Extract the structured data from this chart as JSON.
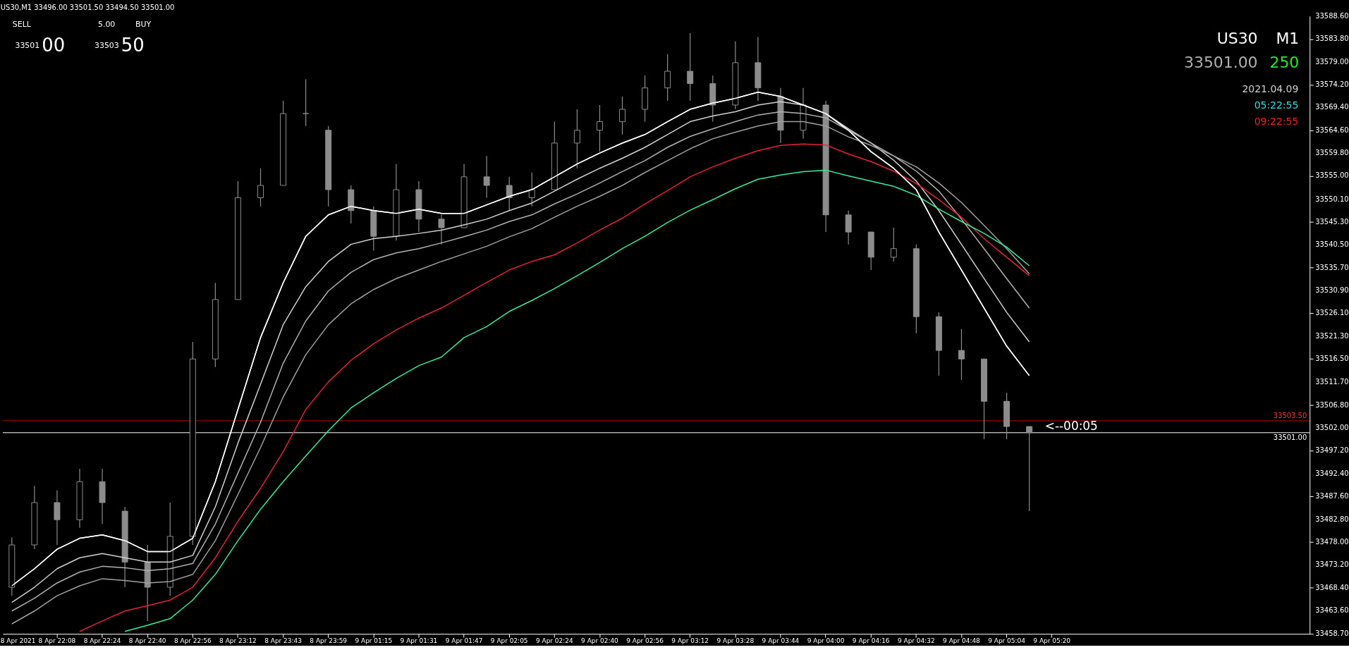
{
  "chart_data": {
    "type": "candlestick",
    "title": "US30,M1 33496.00 33501.50 33494.50 33501.00",
    "categories": [
      "8 Apr 2021",
      null,
      "8 Apr 22:08",
      null,
      "8 Apr 22:24",
      null,
      "8 Apr 22:40",
      null,
      "8 Apr 22:56",
      null,
      "8 Apr 23:12",
      null,
      "8 Apr 23:43",
      null,
      "8 Apr 23:59",
      null,
      "9 Apr 01:15",
      null,
      "9 Apr 01:31",
      null,
      "9 Apr 01:47",
      null,
      "9 Apr 02:05",
      null,
      "9 Apr 02:24",
      null,
      "9 Apr 02:40",
      null,
      "9 Apr 02:56",
      null,
      "9 Apr 03:12",
      null,
      "9 Apr 03:28",
      null,
      "9 Apr 03:44",
      null,
      "9 Apr 04:00",
      null,
      "9 Apr 04:16",
      null,
      "9 Apr 04:32",
      null,
      "9 Apr 04:48",
      null,
      "9 Apr 05:04",
      null,
      "9 Apr 05:20",
      null,
      null,
      null,
      null,
      null,
      null,
      null,
      null,
      null,
      null,
      null
    ],
    "color": "#8c8c8c",
    "ohlc": [
      [
        33468.5,
        33479.0,
        33466.7,
        33477.4
      ],
      [
        33477.4,
        33489.8,
        33476.5,
        33486.3
      ],
      [
        33486.3,
        33488.9,
        33477.4,
        33482.7
      ],
      [
        33482.7,
        33493.4,
        33481.0,
        33490.7
      ],
      [
        33490.7,
        33493.4,
        33481.8,
        33486.3
      ],
      [
        33484.5,
        33485.4,
        33468.5,
        33473.8
      ],
      [
        33473.8,
        33477.4,
        33461.4,
        33468.5
      ],
      [
        33468.5,
        33486.3,
        33466.7,
        33479.2
      ],
      [
        33479.2,
        33520.1,
        33477.4,
        33516.5
      ],
      [
        33516.5,
        33532.5,
        33514.8,
        33529.0
      ],
      [
        33529.0,
        33553.9,
        33529.0,
        33550.4
      ],
      [
        33550.4,
        33556.6,
        33548.6,
        33553.0
      ],
      [
        33553.0,
        33570.8,
        33553.0,
        33568.1
      ],
      [
        33568.1,
        33575.3,
        33565.5,
        33568.1
      ],
      [
        33564.6,
        33565.5,
        33548.6,
        33552.1
      ],
      [
        33552.1,
        33553.0,
        33545.0,
        33547.7
      ],
      [
        33547.7,
        33548.6,
        33539.3,
        33542.3
      ],
      [
        33542.3,
        33557.5,
        33541.4,
        33552.1
      ],
      [
        33552.1,
        33553.9,
        33543.2,
        33545.9
      ],
      [
        33545.9,
        33546.8,
        33540.6,
        33544.1
      ],
      [
        33544.1,
        33557.5,
        33544.1,
        33554.8
      ],
      [
        33554.8,
        33559.2,
        33550.4,
        33553.0
      ],
      [
        33553.0,
        33554.8,
        33547.7,
        33550.4
      ],
      [
        33550.4,
        33555.7,
        33548.6,
        33552.1
      ],
      [
        33552.1,
        33566.4,
        33552.1,
        33561.9
      ],
      [
        33561.9,
        33569.0,
        33556.6,
        33564.6
      ],
      [
        33564.6,
        33569.9,
        33560.1,
        33566.4
      ],
      [
        33566.4,
        33571.7,
        33563.7,
        33569.0
      ],
      [
        33569.0,
        33576.1,
        33566.4,
        33573.5
      ],
      [
        33573.5,
        33580.6,
        33570.8,
        33577.0
      ],
      [
        33577.0,
        33585.0,
        33570.8,
        33574.4
      ],
      [
        33574.4,
        33576.1,
        33566.4,
        33569.9
      ],
      [
        33569.9,
        33583.3,
        33569.0,
        33578.8
      ],
      [
        33578.8,
        33584.2,
        33570.8,
        33573.5
      ],
      [
        33571.7,
        33573.5,
        33561.9,
        33564.6
      ],
      [
        33564.6,
        33573.5,
        33562.8,
        33569.9
      ],
      [
        33569.9,
        33570.8,
        33543.2,
        33546.8
      ],
      [
        33546.8,
        33547.7,
        33540.6,
        33543.2
      ],
      [
        33543.2,
        33543.2,
        33535.2,
        33537.9
      ],
      [
        33537.9,
        33544.1,
        33537.0,
        33539.7
      ],
      [
        33539.7,
        33540.6,
        33521.9,
        33525.4
      ],
      [
        33525.4,
        33526.3,
        33513.0,
        33518.3
      ],
      [
        33518.3,
        33522.8,
        33512.1,
        33516.5
      ],
      [
        33516.5,
        33516.5,
        33499.6,
        33507.6
      ],
      [
        33507.6,
        33509.4,
        33499.6,
        33502.3
      ],
      [
        33502.3,
        33502.3,
        33484.5,
        33501.0
      ],
      null,
      null,
      null,
      null,
      null,
      null,
      null,
      null,
      null,
      null,
      null,
      null
    ],
    "series": [
      {
        "type": "line",
        "color": "#ffffff",
        "values": [
          33468.8,
          33472.4,
          33476.5,
          33478.8,
          33479.5,
          33478.3,
          33476.0,
          33476.0,
          33478.8,
          33490.7,
          33505.9,
          33521.0,
          33532.5,
          33542.3,
          33546.8,
          33548.6,
          33547.7,
          33547.1,
          33548.0,
          33547.1,
          33547.1,
          33548.9,
          33550.7,
          33552.1,
          33554.8,
          33557.5,
          33559.8,
          33561.9,
          33563.7,
          33566.4,
          33569.0,
          33570.3,
          33571.3,
          33572.6,
          33571.7,
          33569.9,
          33568.1,
          33564.6,
          33560.1,
          33556.6,
          33552.1,
          33543.2,
          33535.2,
          33527.2,
          33519.2,
          33513.0,
          null,
          null,
          null,
          null,
          null,
          null,
          null,
          null,
          null,
          null,
          null,
          null
        ]
      },
      {
        "type": "line",
        "color": "#d0d0d0",
        "values": [
          33465.3,
          33468.5,
          33472.4,
          33474.7,
          33475.6,
          33474.7,
          33473.8,
          33473.8,
          33475.2,
          33485.4,
          33498.8,
          33511.2,
          33523.7,
          33531.7,
          33537.0,
          33540.6,
          33541.8,
          33542.3,
          33542.9,
          33543.6,
          33544.7,
          33545.9,
          33547.7,
          33549.3,
          33551.8,
          33554.3,
          33556.6,
          33558.7,
          33561.0,
          33563.7,
          33566.4,
          33567.6,
          33568.5,
          33569.9,
          33570.6,
          33569.9,
          33568.1,
          33564.9,
          33561.9,
          33558.3,
          33553.9,
          33547.7,
          33540.6,
          33533.4,
          33526.3,
          33520.1,
          null,
          null,
          null,
          null,
          null,
          null,
          null,
          null,
          null,
          null,
          null,
          null
        ]
      },
      {
        "type": "line",
        "color": "#b0b0b0",
        "values": [
          33463.5,
          33466.2,
          33469.4,
          33471.7,
          33472.9,
          33472.6,
          33472.0,
          33472.4,
          33473.5,
          33481.8,
          33492.5,
          33503.2,
          33515.6,
          33524.5,
          33530.8,
          33534.7,
          33537.4,
          33538.8,
          33539.7,
          33540.9,
          33542.2,
          33543.6,
          33545.4,
          33546.8,
          33549.1,
          33551.2,
          33553.5,
          33555.9,
          33558.2,
          33561.0,
          33563.3,
          33564.9,
          33566.4,
          33567.8,
          33568.5,
          33568.1,
          33567.2,
          33564.6,
          33561.9,
          33559.2,
          33556.0,
          33551.8,
          33545.9,
          33539.7,
          33533.4,
          33527.2,
          null,
          null,
          null,
          null,
          null,
          null,
          null,
          null,
          null,
          null,
          null,
          null
        ]
      },
      {
        "type": "line",
        "color": "#a0a0a0",
        "values": [
          33460.8,
          33463.5,
          33466.7,
          33468.8,
          33470.3,
          33469.9,
          33469.4,
          33469.7,
          33471.2,
          33478.3,
          33488.0,
          33497.9,
          33508.5,
          33517.4,
          33523.7,
          33528.1,
          33531.1,
          33533.4,
          33535.2,
          33537.0,
          33538.6,
          33540.2,
          33542.2,
          33543.9,
          33546.3,
          33548.6,
          33550.7,
          33553.0,
          33555.7,
          33558.2,
          33560.7,
          33562.8,
          33564.2,
          33565.5,
          33566.4,
          33566.4,
          33565.5,
          33563.2,
          33561.4,
          33559.2,
          33556.9,
          33553.5,
          33549.4,
          33544.6,
          33539.7,
          33534.4,
          null,
          null,
          null,
          null,
          null,
          null,
          null,
          null,
          null,
          null,
          null,
          null
        ]
      },
      {
        "type": "line",
        "color": "#e8203a",
        "values": [
          null,
          null,
          null,
          33459.2,
          33461.4,
          33463.5,
          33464.6,
          33465.8,
          33468.5,
          33474.7,
          33482.4,
          33489.3,
          33497.0,
          33505.9,
          33511.7,
          33516.2,
          33519.7,
          33522.6,
          33525.1,
          33527.2,
          33529.9,
          33532.6,
          33535.2,
          33537.0,
          33538.4,
          33540.9,
          33543.6,
          33546.1,
          33549.1,
          33551.9,
          33554.8,
          33556.9,
          33558.7,
          33560.3,
          33561.4,
          33561.7,
          33561.5,
          33559.6,
          33558.0,
          33556.0,
          33553.4,
          33550.0,
          33546.3,
          33541.8,
          33537.9,
          33534.0,
          null,
          null,
          null,
          null,
          null,
          null,
          null,
          null,
          null,
          null,
          null,
          null
        ]
      },
      {
        "type": "line",
        "color": "#33ee99",
        "values": [
          null,
          null,
          null,
          null,
          null,
          33459.2,
          33460.5,
          33461.9,
          33465.8,
          33471.2,
          33478.3,
          33484.9,
          33490.7,
          33496.1,
          33501.4,
          33506.2,
          33509.4,
          33512.4,
          33515.1,
          33516.9,
          33521.0,
          33523.3,
          33526.5,
          33528.8,
          33531.3,
          33534.0,
          33536.8,
          33539.7,
          33542.3,
          33545.2,
          33547.8,
          33550.0,
          33552.3,
          33554.3,
          33555.2,
          33555.9,
          33556.2,
          33555.0,
          33553.9,
          33552.8,
          33550.9,
          33548.0,
          33545.4,
          33542.9,
          33540.0,
          33536.1,
          null,
          null,
          null,
          null,
          null,
          null,
          null,
          null,
          null,
          null,
          null,
          null
        ]
      }
    ],
    "ylim": [
      33458.7,
      33588.6
    ],
    "yticks": [
      {
        "value": 33458.7,
        "label": "33458.70"
      },
      {
        "value": 33463.6,
        "label": "33463.60"
      },
      {
        "value": 33468.4,
        "label": "33468.40"
      },
      {
        "value": 33473.2,
        "label": "33473.20"
      },
      {
        "value": 33478,
        "label": "33478.00"
      },
      {
        "value": 33482.8,
        "label": "33482.80"
      },
      {
        "value": 33487.6,
        "label": "33487.60"
      },
      {
        "value": 33492.4,
        "label": "33492.40"
      },
      {
        "value": 33497.2,
        "label": "33497.20"
      },
      {
        "value": 33502,
        "label": "33502.00"
      },
      {
        "value": 33506.8,
        "label": "33506.80"
      },
      {
        "value": 33511.7,
        "label": "33511.70"
      },
      {
        "value": 33516.5,
        "label": "33516.50"
      },
      {
        "value": 33521.3,
        "label": "33521.30"
      },
      {
        "value": 33526.1,
        "label": "33526.10"
      },
      {
        "value": 33530.9,
        "label": "33530.90"
      },
      {
        "value": 33535.7,
        "label": "33535.70"
      },
      {
        "value": 33540.5,
        "label": "33540.50"
      },
      {
        "value": 33545.3,
        "label": "33545.30"
      },
      {
        "value": 33550.1,
        "label": "33550.10"
      },
      {
        "value": 33555,
        "label": "33555.00"
      },
      {
        "value": 33559.8,
        "label": "33559.80"
      },
      {
        "value": 33564.6,
        "label": "33564.60"
      },
      {
        "value": 33569.4,
        "label": "33569.40"
      },
      {
        "value": 33574.2,
        "label": "33574.20"
      },
      {
        "value": 33579,
        "label": "33579.00"
      },
      {
        "value": 33583.8,
        "label": "33583.80"
      },
      {
        "value": 33588.6,
        "label": "33588.60"
      }
    ],
    "ref_lines": [
      {
        "axis": "y",
        "value": 33503.5,
        "label": "33503.50",
        "color": "#c00000"
      },
      {
        "axis": "y",
        "value": 33501.0,
        "label": "33501.00",
        "color": "#ffffff"
      }
    ],
    "annotations": [
      {
        "text": "<--00:05",
        "y": 33501.0
      },
      "SELL",
      "5.00",
      "BUY",
      "33501",
      "00",
      "33503",
      "50",
      "US30",
      "M1",
      "33501.00",
      "250",
      "2021.04.09",
      "05:22:55",
      "09:22:55"
    ],
    "grid": false
  }
}
